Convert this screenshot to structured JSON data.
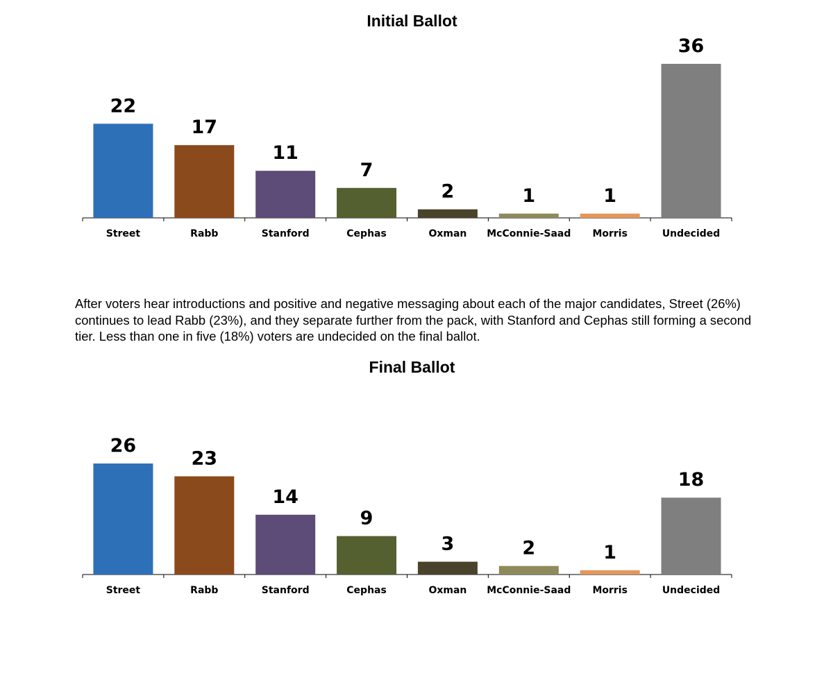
{
  "chart_data": [
    {
      "type": "bar",
      "title": "Initial Ballot",
      "categories": [
        "Street",
        "Rabb",
        "Stanford",
        "Cephas",
        "Oxman",
        "McConnie-Saad",
        "Morris",
        "Undecided"
      ],
      "values": [
        22,
        17,
        11,
        7,
        2,
        1,
        1,
        36
      ],
      "colors": [
        "#2e70b8",
        "#8b4a1c",
        "#5d4c77",
        "#546030",
        "#4a432b",
        "#8e8a5c",
        "#e5975a",
        "#7f7f7f"
      ],
      "xlabel": "",
      "ylabel": "",
      "ylim": [
        0,
        36
      ],
      "grid": false,
      "legend": "none"
    },
    {
      "type": "bar",
      "title": "Final Ballot",
      "categories": [
        "Street",
        "Rabb",
        "Stanford",
        "Cephas",
        "Oxman",
        "McConnie-Saad",
        "Morris",
        "Undecided"
      ],
      "values": [
        26,
        23,
        14,
        9,
        3,
        2,
        1,
        18
      ],
      "colors": [
        "#2e70b8",
        "#8b4a1c",
        "#5d4c77",
        "#546030",
        "#4a432b",
        "#8e8a5c",
        "#e5975a",
        "#7f7f7f"
      ],
      "xlabel": "",
      "ylabel": "",
      "ylim": [
        0,
        26
      ],
      "grid": false,
      "legend": "none"
    }
  ],
  "text": {
    "paragraph": "After voters hear introductions and positive and negative messaging about each of the major candidates, Street (26%) continues to lead Rabb (23%), and they separate further from the pack, with Stanford and Cephas still forming a second tier. Less than one in five (18%) voters are undecided on the final ballot."
  }
}
